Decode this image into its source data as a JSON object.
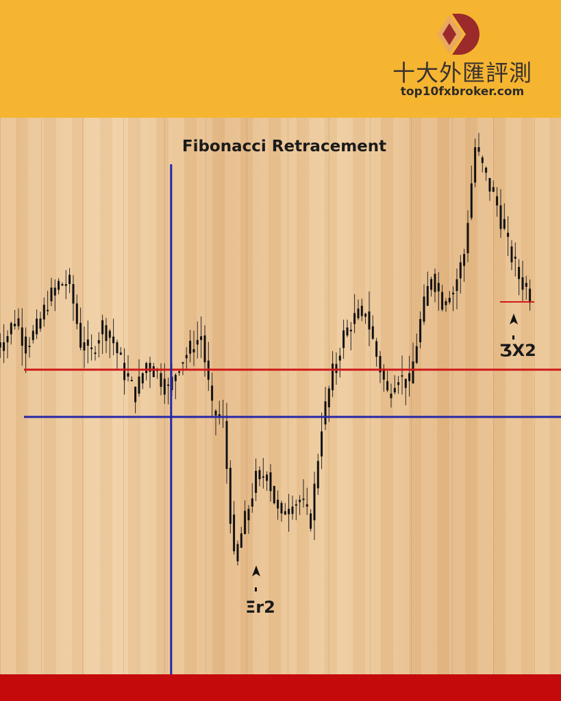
{
  "header": {
    "brand_name": "十大外匯評測",
    "brand_url": "top10fxbroker.com",
    "background_color": "#f5b531",
    "logo_colors": [
      "#9b2a2a",
      "#e8a860"
    ]
  },
  "footer": {
    "color": "#c40a0a"
  },
  "chart_data": {
    "type": "candlestick",
    "title": "Fibonacci Retracement",
    "xlabel": "",
    "ylabel": "",
    "axes_visible": false,
    "grid": false,
    "background": "wood texture",
    "closes": [
      50,
      53.5,
      49.5,
      52,
      56,
      58.5,
      58.5,
      50,
      48.5,
      52.5,
      50,
      45.5,
      42.5,
      47,
      45.5,
      43,
      47,
      49,
      51,
      40,
      38.5,
      18,
      24,
      30,
      31,
      25,
      26,
      27,
      24,
      38,
      45.5,
      51,
      53.5,
      54.5,
      48,
      42.5,
      45,
      44,
      53,
      60,
      56,
      57.5,
      63,
      78.5,
      74,
      70,
      64,
      59.5,
      57
    ],
    "horizontal_lines": [
      {
        "level": 46,
        "color": "#d01818"
      },
      {
        "level": 39.1,
        "color": "#2626a8"
      },
      {
        "level": 55.9,
        "color": "#d01818",
        "segment": "right-end"
      }
    ],
    "vertical_line": {
      "color": "#2626a8",
      "at_index": 15.3
    },
    "annotations": [
      {
        "text": "Ξr2",
        "at_index": 22,
        "marker": "arrow-up"
      },
      {
        "text": "ƷX2",
        "at_index": 46.8,
        "marker": "arrow-up"
      }
    ]
  }
}
